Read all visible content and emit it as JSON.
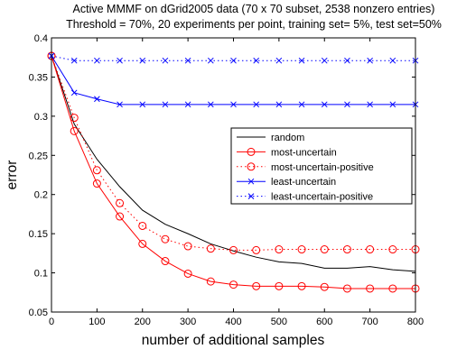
{
  "chart_data": {
    "type": "line",
    "title": "Active MMMF on dGrid2005 data (70 x 70 subset, 2538 nonzero entries)",
    "subtitle": "Threshold = 70%, 20 experiments per point, training set= 5%, test set=50%",
    "xlabel": "number of additional samples",
    "ylabel": "error",
    "xlim": [
      0,
      800
    ],
    "ylim": [
      0.05,
      0.4
    ],
    "xticks": [
      "0",
      "100",
      "200",
      "300",
      "400",
      "500",
      "600",
      "700",
      "800"
    ],
    "yticks": [
      "0.05",
      "0.1",
      "0.15",
      "0.2",
      "0.25",
      "0.3",
      "0.35",
      "0.4"
    ],
    "grid": false,
    "legend_position": "center-right",
    "x": [
      0,
      50,
      100,
      150,
      200,
      250,
      300,
      350,
      400,
      450,
      500,
      550,
      600,
      650,
      700,
      750,
      800
    ],
    "series": [
      {
        "name": "random",
        "color": "#000000",
        "line": "solid",
        "marker": "none",
        "values": [
          0.377,
          0.29,
          0.245,
          0.21,
          0.18,
          0.162,
          0.15,
          0.137,
          0.128,
          0.12,
          0.114,
          0.112,
          0.106,
          0.106,
          0.108,
          0.104,
          0.102
        ]
      },
      {
        "name": "most-uncertain",
        "color": "#ff0000",
        "line": "solid",
        "marker": "circle",
        "values": [
          0.377,
          0.281,
          0.214,
          0.172,
          0.137,
          0.115,
          0.099,
          0.089,
          0.085,
          0.083,
          0.083,
          0.083,
          0.082,
          0.08,
          0.08,
          0.08,
          0.08
        ]
      },
      {
        "name": "most-uncertain-positive",
        "color": "#ff0000",
        "line": "dotted",
        "marker": "circle",
        "values": [
          0.377,
          0.298,
          0.231,
          0.189,
          0.16,
          0.143,
          0.134,
          0.131,
          0.129,
          0.129,
          0.13,
          0.13,
          0.13,
          0.13,
          0.13,
          0.13,
          0.13
        ]
      },
      {
        "name": "least-uncertain",
        "color": "#0000ff",
        "line": "solid",
        "marker": "x",
        "values": [
          0.377,
          0.33,
          0.322,
          0.315,
          0.315,
          0.315,
          0.315,
          0.315,
          0.315,
          0.315,
          0.315,
          0.315,
          0.315,
          0.315,
          0.315,
          0.315,
          0.315
        ]
      },
      {
        "name": "least-uncertain-positive",
        "color": "#0000ff",
        "line": "dotted",
        "marker": "x",
        "values": [
          0.377,
          0.371,
          0.371,
          0.371,
          0.371,
          0.371,
          0.371,
          0.371,
          0.371,
          0.371,
          0.371,
          0.371,
          0.371,
          0.371,
          0.371,
          0.371,
          0.371
        ]
      }
    ]
  }
}
